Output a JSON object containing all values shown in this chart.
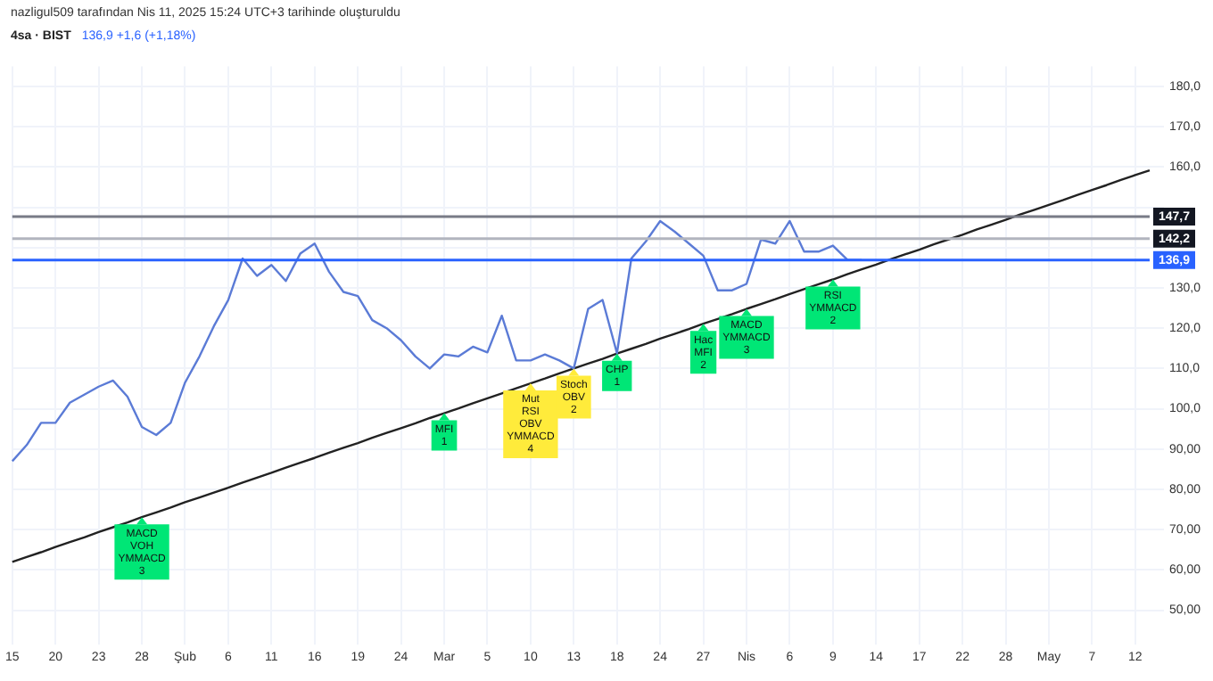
{
  "chart_data": {
    "type": "line",
    "title": "4sa · BIST",
    "subtitle": "136,9 +1,6 (+1,18%)",
    "annotations": [
      "nazligul509 tarafından Nis 11, 2025 15:24 UTC+3 tarihinde oluşturuldu",
      {
        "text": "MACD\nVOH\nYMMACD\n3",
        "x": "28",
        "y": 73.1
      },
      {
        "text": "MFI\n1",
        "x": "Mar",
        "y": 98.9
      },
      {
        "text": "Mut\nRSI\nOBV\nYMMACD\n4",
        "x": "10",
        "y": 106.3
      },
      {
        "text": "Stoch\nOBV\n2",
        "x": "13",
        "y": 110.0
      },
      {
        "text": "CHP\n1",
        "x": "18",
        "y": 113.7
      },
      {
        "text": "Hac\nMFI\n2",
        "x": "27",
        "y": 121.1
      },
      {
        "text": "MACD\nYMMACD\n3",
        "x": "Nis",
        "y": 124.8
      },
      {
        "text": "RSI\nYMMACD\n2",
        "x": "9",
        "y": 132.1
      }
    ],
    "categories": [
      "15",
      null,
      null,
      "20",
      null,
      null,
      "23",
      null,
      null,
      "28",
      null,
      null,
      "Şub",
      null,
      null,
      "6",
      null,
      null,
      "11",
      null,
      null,
      "16",
      null,
      null,
      "19",
      null,
      null,
      "24",
      null,
      null,
      "Mar",
      null,
      null,
      "5",
      null,
      null,
      "10",
      null,
      null,
      "13",
      null,
      null,
      "18",
      null,
      null,
      "24",
      null,
      null,
      "27",
      null,
      null,
      "Nis",
      null,
      null,
      "6",
      null,
      null,
      "9",
      null,
      null,
      "14",
      null,
      null,
      "17",
      null,
      null,
      "22",
      null,
      null,
      "28",
      null,
      null,
      "May",
      null,
      null,
      "7",
      null,
      null,
      "12",
      null
    ],
    "series": [
      {
        "color": "#5b7bd6",
        "values": [
          87,
          91,
          96.5,
          96.5,
          101.5,
          103.5,
          105.5,
          107,
          103,
          95.5,
          93.5,
          96.5,
          106.5,
          113,
          120.5,
          127,
          137.3,
          133,
          135.7,
          131.7,
          138.5,
          141,
          134,
          129,
          128,
          122,
          120,
          117,
          113,
          110,
          113.5,
          113,
          115.4,
          114,
          123.1,
          112,
          112,
          113.5,
          112,
          110,
          124.8,
          127,
          113.8,
          137.3,
          141.5,
          146.6,
          144,
          141,
          138,
          129.4,
          129.4,
          131,
          142,
          141,
          146.6,
          139,
          139,
          140.5,
          137,
          136.9,
          null,
          null,
          null,
          null,
          null,
          null,
          null,
          null,
          null,
          null,
          null,
          null,
          null,
          null,
          null,
          null,
          null,
          null,
          null,
          null
        ]
      },
      {
        "color": "#222222",
        "values": [
          62.0,
          63.2,
          64.4,
          65.7,
          66.9,
          68.1,
          69.4,
          70.6,
          71.8,
          73.1,
          74.3,
          75.5,
          76.8,
          78.0,
          79.2,
          80.4,
          81.7,
          82.9,
          84.1,
          85.4,
          86.6,
          87.8,
          89.1,
          90.3,
          91.5,
          92.8,
          94.0,
          95.2,
          96.4,
          97.7,
          98.9,
          100.1,
          101.4,
          102.6,
          103.8,
          105.1,
          106.3,
          107.5,
          108.8,
          110.0,
          111.2,
          112.4,
          113.7,
          114.9,
          116.1,
          117.4,
          118.6,
          119.8,
          121.1,
          122.3,
          123.5,
          124.8,
          126.0,
          127.2,
          128.5,
          129.7,
          130.9,
          132.1,
          133.4,
          134.6,
          135.8,
          137.1,
          138.3,
          139.5,
          140.8,
          142.0,
          143.2,
          144.5,
          145.7,
          146.9,
          148.2,
          149.4,
          150.6,
          151.8,
          153.1,
          154.3,
          155.5,
          156.8,
          158.0,
          159.2
        ]
      }
    ],
    "ylim": [
      45,
      185
    ],
    "yticks": [
      {
        "value": 50,
        "label": "50,00"
      },
      {
        "value": 60,
        "label": "60,00"
      },
      {
        "value": 70,
        "label": "70,00"
      },
      {
        "value": 80,
        "label": "80,00"
      },
      {
        "value": 90,
        "label": "90,00"
      },
      {
        "value": 100,
        "label": "100,0"
      },
      {
        "value": 110,
        "label": "110,0"
      },
      {
        "value": 120,
        "label": "120,0"
      },
      {
        "value": 130,
        "label": "130,0"
      },
      {
        "value": 140,
        "label": null
      },
      {
        "value": 150,
        "label": null
      },
      {
        "value": 160,
        "label": "160,0"
      },
      {
        "value": 170,
        "label": "170,0"
      },
      {
        "value": 180,
        "label": "180,0"
      }
    ],
    "ref_lines": [
      {
        "axis": "y",
        "value": 147.7,
        "label": "147,7",
        "color": "#787b86"
      },
      {
        "axis": "y",
        "value": 142.2,
        "label": "142,2",
        "color": "#b2b5be"
      },
      {
        "axis": "y",
        "value": 136.9,
        "label": "136,9",
        "color": "#2962ff"
      }
    ],
    "grid": true,
    "legend": false,
    "marker": "none",
    "line_style": "solid"
  }
}
